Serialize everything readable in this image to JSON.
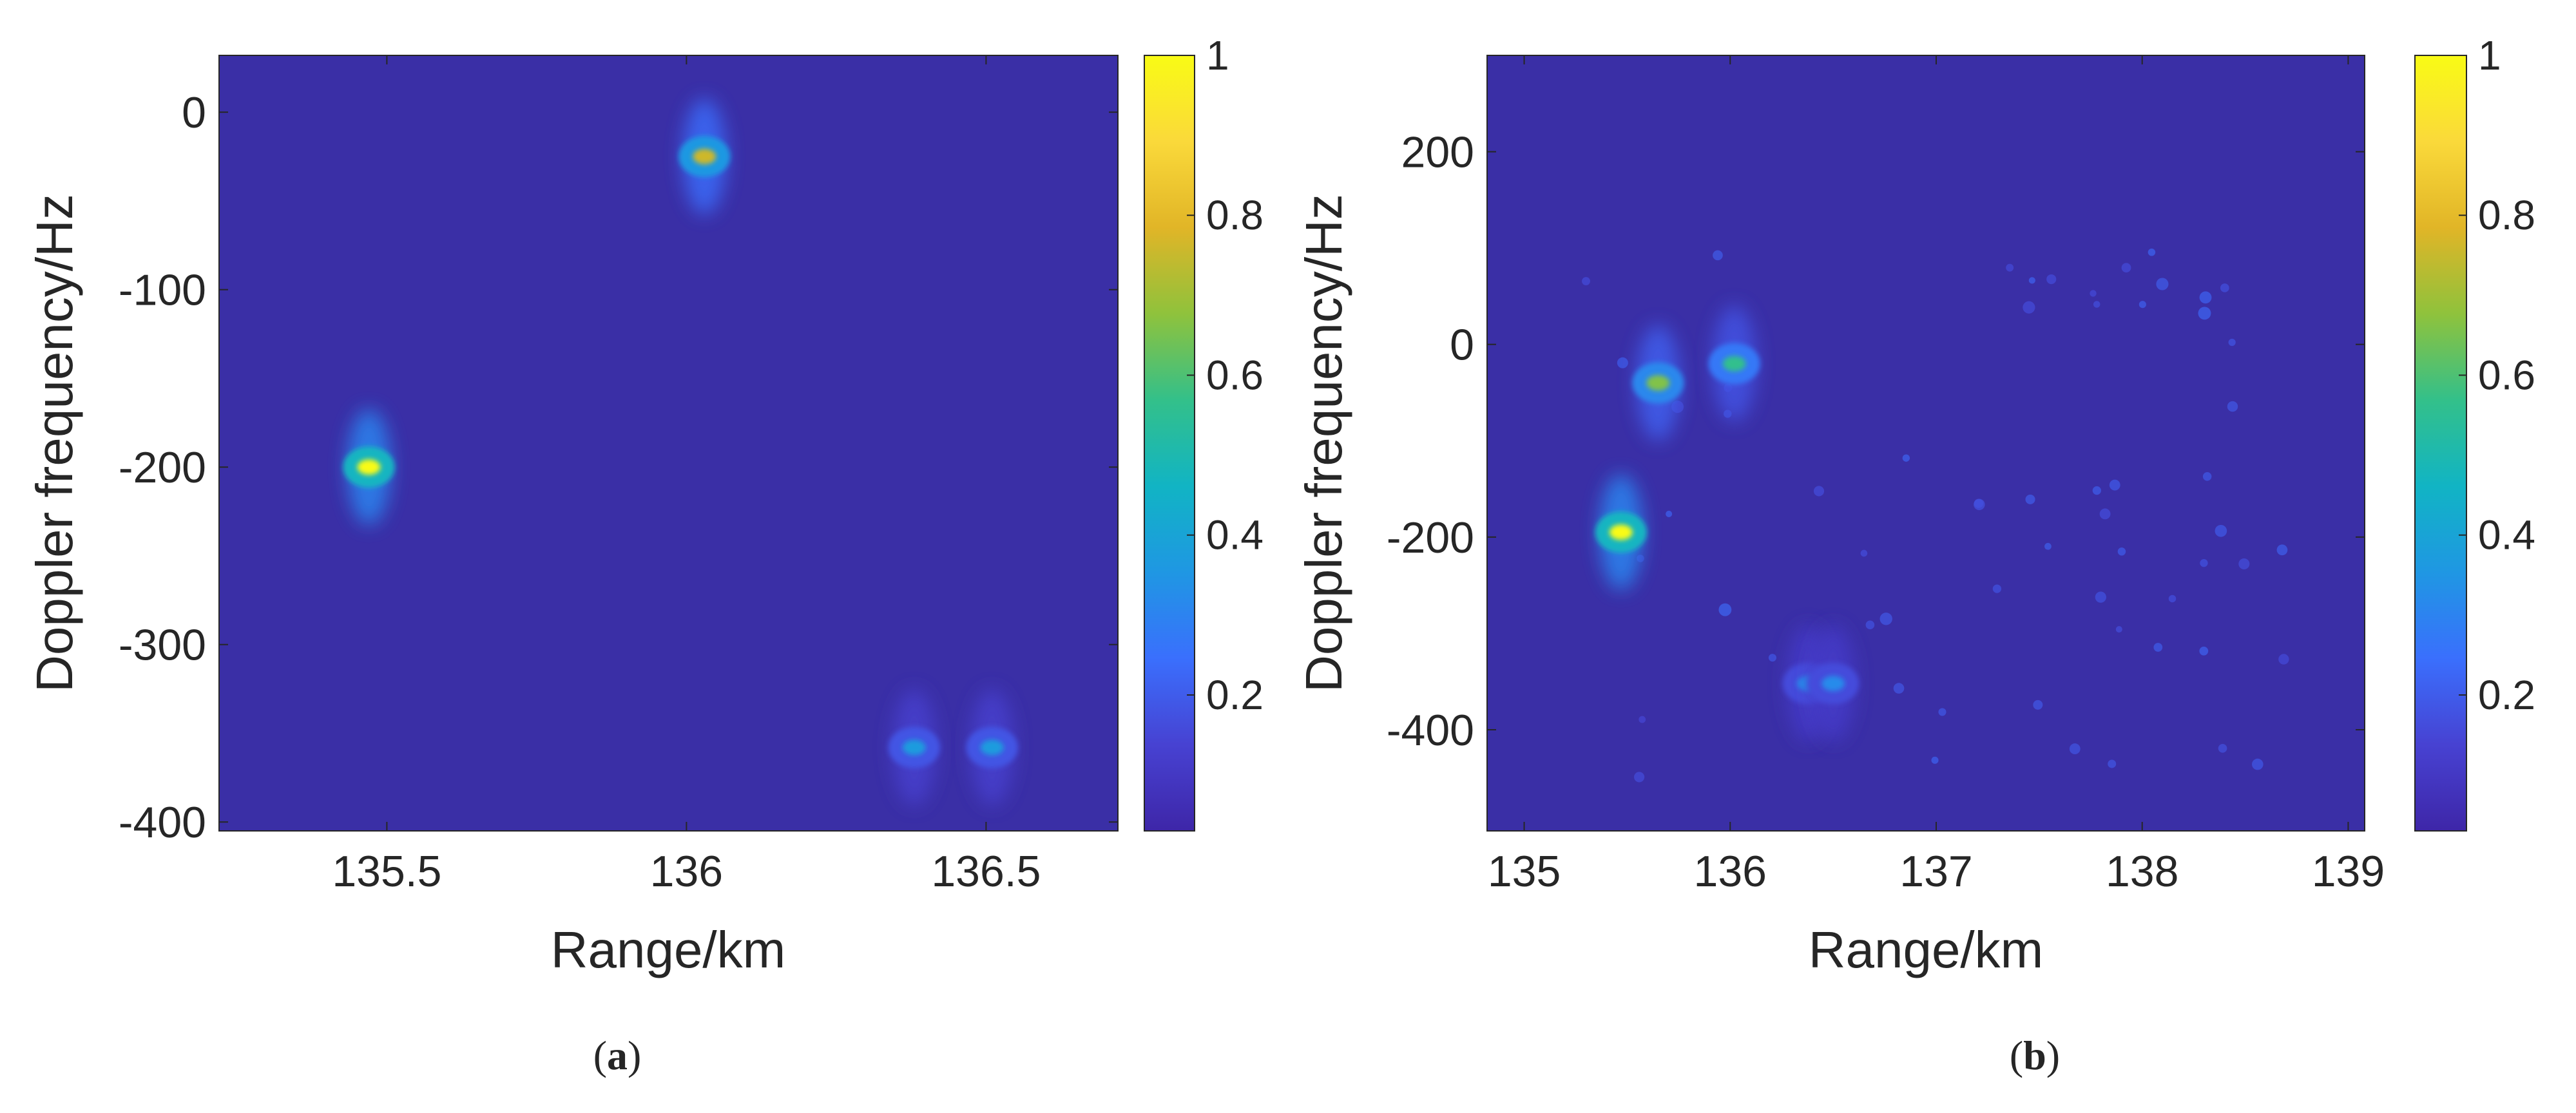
{
  "figure": {
    "colors": {
      "background": "#3a2fa6",
      "colormap": [
        "#3e26a8",
        "#4742d2",
        "#3a6ffd",
        "#1f97e3",
        "#11b4c4",
        "#33c08a",
        "#8fc23c",
        "#e1b527",
        "#fad93a",
        "#f9fb15"
      ],
      "axis": "#262626"
    },
    "charts": [
      {
        "panel_caption": {
          "open": "(",
          "letter": "a",
          "close": ")"
        },
        "xlabel": "Range/km",
        "ylabel": "Doppler frequency/Hz",
        "colorbar_ticks": [
          "0.2",
          "0.4",
          "0.6",
          "0.8",
          "1"
        ]
      },
      {
        "panel_caption": {
          "open": "(",
          "letter": "b",
          "close": ")"
        },
        "xlabel": "Range/km",
        "ylabel": "Doppler frequency/Hz",
        "colorbar_ticks": [
          "0.2",
          "0.4",
          "0.6",
          "0.8",
          "1"
        ]
      }
    ]
  },
  "chart_data": [
    {
      "type": "heatmap",
      "xlim": [
        135.22,
        136.72
      ],
      "ylim": [
        -405,
        32
      ],
      "xticks": [
        135.5,
        136,
        136.5
      ],
      "xtick_labels": [
        "135.5",
        "136",
        "136.5"
      ],
      "yticks": [
        0,
        -100,
        -200,
        -300,
        -400
      ],
      "ytick_labels": [
        "0",
        "-100",
        "-200",
        "-300",
        "-400"
      ],
      "colorbar": {
        "min": 0.03,
        "max": 1,
        "ticks": [
          0.2,
          0.4,
          0.6,
          0.8,
          1
        ]
      },
      "grid": false,
      "targets": [
        {
          "range_km": 135.47,
          "doppler_hz": -200,
          "intensity": 1.0
        },
        {
          "range_km": 136.03,
          "doppler_hz": -25,
          "intensity": 0.75
        },
        {
          "range_km": 136.38,
          "doppler_hz": -358,
          "intensity": 0.35
        },
        {
          "range_km": 136.51,
          "doppler_hz": -358,
          "intensity": 0.35
        }
      ]
    },
    {
      "type": "heatmap",
      "xlim": [
        134.82,
        139.08
      ],
      "ylim": [
        -505,
        300
      ],
      "xticks": [
        135,
        136,
        137,
        138,
        139
      ],
      "xtick_labels": [
        "135",
        "136",
        "137",
        "138",
        "139"
      ],
      "yticks": [
        200,
        0,
        -200,
        -400
      ],
      "ytick_labels": [
        "200",
        "0",
        "-200",
        "-400"
      ],
      "colorbar": {
        "min": 0.03,
        "max": 1,
        "ticks": [
          0.2,
          0.4,
          0.6,
          0.8,
          1
        ]
      },
      "grid": false,
      "targets": [
        {
          "range_km": 135.47,
          "doppler_hz": -195,
          "intensity": 1.0
        },
        {
          "range_km": 135.65,
          "doppler_hz": -40,
          "intensity": 0.65
        },
        {
          "range_km": 136.02,
          "doppler_hz": -20,
          "intensity": 0.55
        },
        {
          "range_km": 136.38,
          "doppler_hz": -352,
          "intensity": 0.3
        },
        {
          "range_km": 136.5,
          "doppler_hz": -352,
          "intensity": 0.3
        }
      ]
    }
  ]
}
